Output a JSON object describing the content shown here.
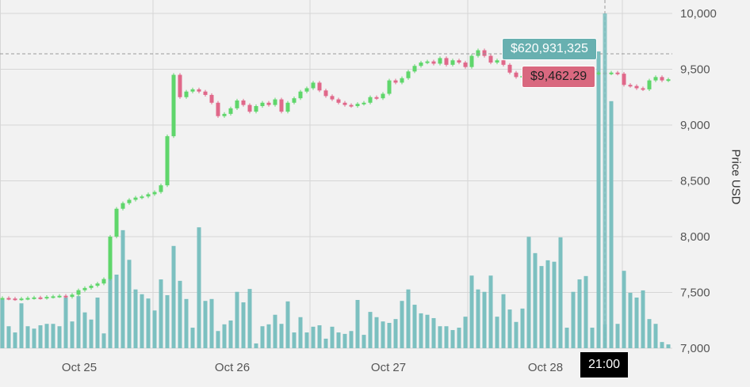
{
  "chart_data": {
    "type": "candlestick",
    "ylabel": "Price USD",
    "ylim": [
      7000,
      10000
    ],
    "yticks": [
      "10,000",
      "9,500",
      "9,000",
      "8,500",
      "8,000",
      "7,500",
      "7,000"
    ],
    "ytick_values": [
      10000,
      9500,
      9000,
      8500,
      8000,
      7500,
      7000
    ],
    "xticks": [
      "Oct 25",
      "Oct 26",
      "Oct 27",
      "Oct 28"
    ],
    "closes": [
      7450,
      7445,
      7440,
      7445,
      7450,
      7455,
      7450,
      7460,
      7465,
      7470,
      7460,
      7480,
      7520,
      7540,
      7560,
      7580,
      7620,
      8000,
      8250,
      8300,
      8330,
      8350,
      8360,
      8380,
      8400,
      8460,
      8900,
      9450,
      9250,
      9300,
      9320,
      9300,
      9270,
      9200,
      9080,
      9100,
      9150,
      9220,
      9180,
      9120,
      9170,
      9200,
      9180,
      9230,
      9120,
      9200,
      9240,
      9300,
      9330,
      9380,
      9310,
      9260,
      9230,
      9200,
      9180,
      9170,
      9190,
      9200,
      9250,
      9240,
      9280,
      9400,
      9380,
      9420,
      9480,
      9530,
      9560,
      9570,
      9550,
      9600,
      9540,
      9580,
      9560,
      9520,
      9620,
      9670,
      9620,
      9560,
      9580,
      9540,
      9470,
      9430,
      9440,
      9480,
      9460,
      9440,
      9460,
      9480,
      9470,
      9450,
      9460,
      9480,
      9470,
      9460,
      9470,
      9462,
      9470,
      9460,
      9360,
      9350,
      9330,
      9320,
      9400,
      9430,
      9400,
      9410
    ],
    "volumes_musd": [
      103,
      46,
      33,
      94,
      46,
      41,
      48,
      51,
      51,
      46,
      106,
      56,
      109,
      75,
      60,
      106,
      31,
      202,
      154,
      247,
      185,
      123,
      113,
      104,
      79,
      144,
      111,
      214,
      141,
      103,
      43,
      253,
      99,
      103,
      36,
      50,
      58,
      118,
      96,
      124,
      10,
      46,
      50,
      70,
      51,
      98,
      33,
      65,
      33,
      45,
      48,
      20,
      45,
      33,
      30,
      36,
      101,
      28,
      76,
      65,
      56,
      53,
      61,
      99,
      123,
      91,
      73,
      70,
      63,
      46,
      46,
      38,
      43,
      66,
      152,
      123,
      118,
      152,
      66,
      113,
      81,
      55,
      83,
      233,
      199,
      172,
      184,
      181,
      232,
      43,
      118,
      144,
      151,
      43,
      621,
      50,
      517,
      51,
      162,
      116,
      106,
      121,
      61,
      51,
      13,
      8
    ],
    "volume_max_musd": 621,
    "hover_index": 95,
    "colors": {
      "up": "#5fd66b",
      "down": "#e0688a",
      "volume": "#7cc0c0",
      "grid": "#d6d6d6"
    }
  },
  "tooltip": {
    "volume": "$620,931,325",
    "price": "$9,462.29",
    "time": "21:00"
  }
}
